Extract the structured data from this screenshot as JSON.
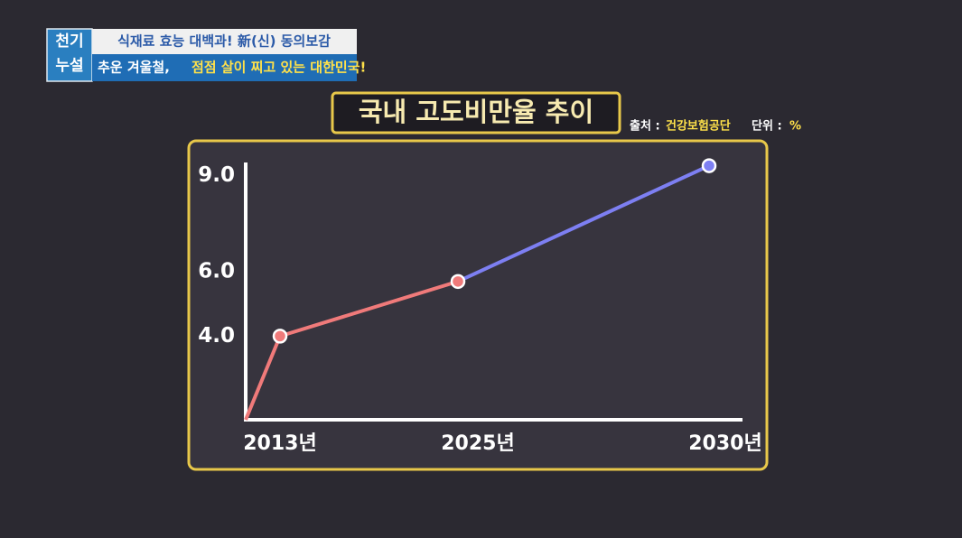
{
  "banner": {
    "logo": [
      "천기",
      "누설"
    ],
    "line1": "식재료 효능 대백과! 新(신) 동의보감",
    "line2_white": "추운 겨울철,",
    "line2_yellow": "점점 살이 찌고 있는 대한민국!"
  },
  "chart_data": {
    "type": "line",
    "title": "국내 고도비만율 추이",
    "source_label": "출처 :",
    "source": "건강보험공단",
    "unit_label": "단위 :",
    "unit": "%",
    "categories": [
      "2013년",
      "2025년",
      "2030년"
    ],
    "values": [
      4.0,
      5.7,
      9.3
    ],
    "segment_colors": [
      "#f07a7a",
      "#7d7ff2"
    ],
    "ylim": [
      1.4,
      9.4
    ],
    "yticks": [
      {
        "value": 4,
        "label": "4.0"
      },
      {
        "value": 6,
        "label": "6.0"
      },
      {
        "value": 9,
        "label": "9.0"
      }
    ],
    "grid": false
  }
}
